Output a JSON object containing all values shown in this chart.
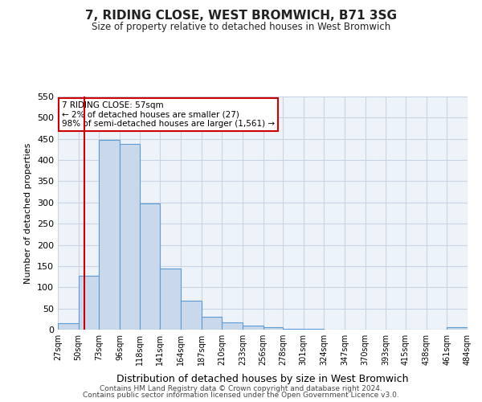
{
  "title": "7, RIDING CLOSE, WEST BROMWICH, B71 3SG",
  "subtitle": "Size of property relative to detached houses in West Bromwich",
  "xlabel": "Distribution of detached houses by size in West Bromwich",
  "ylabel": "Number of detached properties",
  "bin_edges": [
    27,
    50,
    73,
    96,
    118,
    141,
    164,
    187,
    210,
    233,
    256,
    278,
    301,
    324,
    347,
    370,
    393,
    415,
    438,
    461,
    484
  ],
  "bin_heights": [
    15,
    127,
    447,
    438,
    297,
    145,
    68,
    30,
    17,
    10,
    6,
    2,
    1,
    0,
    0,
    0,
    0,
    0,
    0,
    5
  ],
  "bar_facecolor": "#c9d9eb",
  "bar_edgecolor": "#5b9bd5",
  "grid_color": "#c8d4e3",
  "plot_bg_color": "#eef3f9",
  "background_color": "#ffffff",
  "property_line_x": 57,
  "property_line_color": "#cc0000",
  "annotation_text": "7 RIDING CLOSE: 57sqm\n← 2% of detached houses are smaller (27)\n98% of semi-detached houses are larger (1,561) →",
  "annotation_box_color": "#ffffff",
  "annotation_box_edgecolor": "#cc0000",
  "ylim": [
    0,
    550
  ],
  "yticks": [
    0,
    50,
    100,
    150,
    200,
    250,
    300,
    350,
    400,
    450,
    500,
    550
  ],
  "footer_line1": "Contains HM Land Registry data © Crown copyright and database right 2024.",
  "footer_line2": "Contains public sector information licensed under the Open Government Licence v3.0."
}
